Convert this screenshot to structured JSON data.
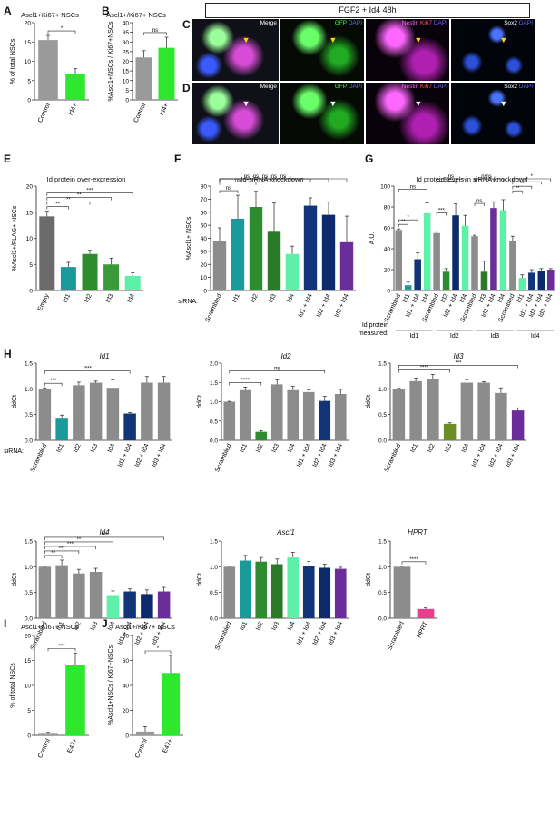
{
  "figure": {
    "banner": "FGF2 + Id4 48h"
  },
  "panels": {
    "A": "A",
    "B": "B",
    "C": "C",
    "D": "D",
    "E": "E",
    "F": "F",
    "G": "G",
    "H": "H",
    "I": "I",
    "J": "J"
  },
  "micro_labels": {
    "merge": "Merge",
    "gfp": "GFP",
    "dapi": "DAPI",
    "nestin": "Nestin",
    "ki67": "Ki67",
    "sox2": "Sox2"
  },
  "colors": {
    "grey": "#8c8c8c",
    "green": "#2ee82e",
    "teal": "#1a9a9a",
    "dgreen": "#2e8b2e",
    "mint": "#5cf0a8",
    "navy": "#12357a",
    "purple": "#6a2d9a",
    "dark": "#555555",
    "pink": "#e83e8c"
  },
  "chart_data": [
    {
      "id": "A",
      "type": "bar",
      "title": "Ascl1+Ki67+ NSCs",
      "ylabel": "% of total NSCs",
      "categories": [
        "Control",
        "Id4+"
      ],
      "values": [
        15.5,
        6.8
      ],
      "errors": [
        1.2,
        1.3
      ],
      "ylim": [
        0,
        20
      ],
      "yticks": [
        "0",
        "5",
        "10",
        "15",
        "20"
      ],
      "sig": [
        {
          "a": 0,
          "b": 1,
          "label": "*"
        }
      ],
      "colors": [
        "#9a9a9a",
        "#2ee82e"
      ]
    },
    {
      "id": "B",
      "type": "bar",
      "title": "Ascl1+/Ki67+ NSCs",
      "ylabel": "%Ascl1+NSCs / Ki67+NSCs",
      "categories": [
        "Control",
        "Id4+"
      ],
      "values": [
        22,
        27
      ],
      "errors": [
        3.5,
        5.5
      ],
      "ylim": [
        0,
        40
      ],
      "yticks": [
        "0",
        "5",
        "10",
        "15",
        "20",
        "25",
        "30",
        "35",
        "40"
      ],
      "sig": [
        {
          "a": 0,
          "b": 1,
          "label": "ns"
        }
      ],
      "colors": [
        "#9a9a9a",
        "#2ee82e"
      ]
    },
    {
      "id": "E",
      "type": "bar",
      "title": "Id protein over-expression",
      "ylabel": "%Ascl1+/FLAG+ NSCs",
      "categories": [
        "Empty",
        "Id1",
        "Id2",
        "Id3",
        "Id4"
      ],
      "values": [
        14.2,
        4.5,
        7.0,
        5.0,
        2.8
      ],
      "errors": [
        1.0,
        0.9,
        0.7,
        1.2,
        0.6
      ],
      "ylim": [
        0,
        20
      ],
      "yticks": [
        "0",
        "5",
        "10",
        "15",
        "20"
      ],
      "sig": [
        {
          "a": 0,
          "b": 1,
          "label": "**"
        },
        {
          "a": 0,
          "b": 2,
          "label": "**"
        },
        {
          "a": 0,
          "b": 3,
          "label": "**"
        },
        {
          "a": 0,
          "b": 4,
          "label": "***"
        }
      ],
      "colors": [
        "#6b6b6b",
        "#1a9a9a",
        "#2e8b2e",
        "#3a9a3a",
        "#5cf0a8"
      ]
    },
    {
      "id": "F",
      "type": "bar",
      "title": "Id-siRNA knockdown",
      "ylabel": "%Ascl1+ NSCs",
      "prefix": "siRNA:",
      "categories": [
        "Scrambled",
        "Id1",
        "Id2",
        "Id3",
        "Id4",
        "Id1 + Id4",
        "Id2 + Id4",
        "Id3 + Id4"
      ],
      "values": [
        38,
        55,
        64,
        45,
        28,
        65,
        58,
        37
      ],
      "errors": [
        10,
        18,
        12,
        22,
        6,
        6,
        10,
        20
      ],
      "ylim": [
        0,
        80
      ],
      "yticks": [
        "0",
        "10",
        "20",
        "30",
        "40",
        "50",
        "60",
        "70",
        "80"
      ],
      "sig": [
        {
          "a": 0,
          "b": 1,
          "label": "ns"
        },
        {
          "a": 0,
          "b": 2,
          "label": "ns"
        },
        {
          "a": 0,
          "b": 3,
          "label": "ns"
        },
        {
          "a": 0,
          "b": 4,
          "label": "ns"
        },
        {
          "a": 0,
          "b": 5,
          "label": "ns"
        },
        {
          "a": 0,
          "b": 6,
          "label": "ns"
        },
        {
          "a": 0,
          "b": 7,
          "label": "ns"
        }
      ],
      "colors": [
        "#8c8c8c",
        "#1a9a9a",
        "#2e8b2e",
        "#2a7a2a",
        "#5cf0a8",
        "#12357a",
        "#0d2a6a",
        "#6a2d9a"
      ]
    },
    {
      "id": "G",
      "type": "bar",
      "title": "Id protein levels in siRNA knockdown",
      "ylabel": "A.U.",
      "categories": [
        "Scrambled",
        "Id1",
        "Id1 + Id4",
        "Id4",
        "Scrambled",
        "Id2",
        "Id2 + Id4",
        "Id4",
        "Scrambled",
        "Id3",
        "Id3 + Id4",
        "Id4",
        "Scrambled",
        "Id1",
        "Id1 + Id4",
        "Id2 + Id4",
        "Id3 + Id4"
      ],
      "values": [
        58,
        5,
        30,
        74,
        55,
        18,
        72,
        62,
        52,
        18,
        79,
        77,
        47,
        12,
        17,
        19,
        20
      ],
      "errors": [
        1,
        3,
        6,
        10,
        2,
        3,
        11,
        10,
        1,
        10,
        6,
        10,
        5,
        3,
        3,
        2,
        1
      ],
      "ylim": [
        0,
        100
      ],
      "yticks": [
        "0",
        "20",
        "40",
        "60",
        "80",
        "100"
      ],
      "groups": [
        "Id1",
        "Id2",
        "Id3",
        "Id4"
      ],
      "group_label": "Id protein\nmeasured:",
      "sig": [
        {
          "a": 0,
          "b": 1,
          "label": "**"
        },
        {
          "a": 0,
          "b": 2,
          "label": "*"
        },
        {
          "a": 0,
          "b": 3,
          "label": "ns"
        },
        {
          "a": 4,
          "b": 5,
          "label": "***"
        },
        {
          "a": 4,
          "b": 6,
          "label": "ns"
        },
        {
          "a": 4,
          "b": 7,
          "label": "ns"
        },
        {
          "a": 8,
          "b": 9,
          "label": "ns"
        },
        {
          "a": 8,
          "b": 10,
          "label": "ns"
        },
        {
          "a": 8,
          "b": 11,
          "label": "ns"
        },
        {
          "a": 12,
          "b": 13,
          "label": "**"
        },
        {
          "a": 12,
          "b": 14,
          "label": "**"
        },
        {
          "a": 12,
          "b": 15,
          "label": "*"
        },
        {
          "a": 12,
          "b": 16,
          "label": "*"
        }
      ],
      "colors": [
        "#8c8c8c",
        "#1a9a9a",
        "#12357a",
        "#5cf0a8",
        "#8c8c8c",
        "#2e8b2e",
        "#0d2a6a",
        "#5cf0a8",
        "#8c8c8c",
        "#2a7a2a",
        "#6a2d9a",
        "#5cf0a8",
        "#8c8c8c",
        "#5cf0a8",
        "#12357a",
        "#0d2a6a",
        "#6a2d9a"
      ]
    },
    {
      "id": "H1",
      "type": "bar",
      "title": "Id1",
      "ylabel": "ddCt",
      "prefix": "siRNA:",
      "categories": [
        "Scrambled",
        "Id1",
        "Id2",
        "Id3",
        "Id4",
        "Id1 + Id4",
        "Id2 + Id4",
        "Id3 + Id4"
      ],
      "values": [
        1.0,
        0.42,
        1.07,
        1.12,
        1.02,
        0.52,
        1.12,
        1.12
      ],
      "errors": [
        0.02,
        0.07,
        0.06,
        0.03,
        0.15,
        0.02,
        0.12,
        0.12
      ],
      "ylim": [
        0,
        1.5
      ],
      "yticks": [
        "0.0",
        "0.5",
        "1.0",
        "1.5"
      ],
      "sig": [
        {
          "a": 0,
          "b": 1,
          "label": "***"
        },
        {
          "a": 0,
          "b": 5,
          "label": "****"
        }
      ],
      "colors": [
        "#8c8c8c",
        "#1a9a9a",
        "#8c8c8c",
        "#8c8c8c",
        "#8c8c8c",
        "#12357a",
        "#8c8c8c",
        "#8c8c8c"
      ]
    },
    {
      "id": "H2",
      "type": "bar",
      "title": "Id2",
      "ylabel": "ddCt",
      "categories": [
        "Scrambled",
        "Id1",
        "Id2",
        "Id3",
        "Id4",
        "Id1 + Id4",
        "Id2 + Id4",
        "Id3 + Id4"
      ],
      "values": [
        1.0,
        1.3,
        0.22,
        1.45,
        1.3,
        1.25,
        1.02,
        1.2
      ],
      "errors": [
        0.01,
        0.08,
        0.03,
        0.12,
        0.1,
        0.06,
        0.12,
        0.12
      ],
      "ylim": [
        0,
        2.0
      ],
      "yticks": [
        "0.0",
        "0.5",
        "1.0",
        "1.5",
        "2.0"
      ],
      "sig": [
        {
          "a": 0,
          "b": 2,
          "label": "****"
        },
        {
          "a": 0,
          "b": 6,
          "label": "ns"
        }
      ],
      "colors": [
        "#8c8c8c",
        "#8c8c8c",
        "#2e8b2e",
        "#8c8c8c",
        "#8c8c8c",
        "#8c8c8c",
        "#12357a",
        "#8c8c8c"
      ]
    },
    {
      "id": "H3",
      "type": "bar",
      "title": "Id3",
      "ylabel": "ddCt",
      "categories": [
        "Scrambled",
        "Id1",
        "Id2",
        "Id3",
        "Id4",
        "Id1 + Id4",
        "Id2 + Id4",
        "Id3 + Id4"
      ],
      "values": [
        1.0,
        1.15,
        1.2,
        0.32,
        1.12,
        1.12,
        0.92,
        0.58
      ],
      "errors": [
        0.01,
        0.06,
        0.08,
        0.02,
        0.06,
        0.02,
        0.1,
        0.05
      ],
      "ylim": [
        0,
        1.5
      ],
      "yticks": [
        "0.0",
        "0.5",
        "1.0",
        "1.5"
      ],
      "sig": [
        {
          "a": 0,
          "b": 3,
          "label": "****"
        },
        {
          "a": 0,
          "b": 7,
          "label": "***"
        }
      ],
      "colors": [
        "#8c8c8c",
        "#8c8c8c",
        "#8c8c8c",
        "#6b8e23",
        "#8c8c8c",
        "#8c8c8c",
        "#8c8c8c",
        "#6a2d9a"
      ]
    },
    {
      "id": "H4",
      "type": "bar",
      "title": "Id4",
      "ylabel": "ddCt",
      "categories": [
        "Scrambled",
        "Id1",
        "Id2",
        "Id3",
        "Id4",
        "Id1 + Id4",
        "Id2 + Id4",
        "Id3 + Id4"
      ],
      "values": [
        1.0,
        1.03,
        0.87,
        0.9,
        0.45,
        0.52,
        0.47,
        0.52
      ],
      "errors": [
        0.01,
        0.1,
        0.08,
        0.07,
        0.08,
        0.05,
        0.08,
        0.08
      ],
      "ylim": [
        0,
        1.5
      ],
      "yticks": [
        "0.0",
        "0.5",
        "1.0",
        "1.5"
      ],
      "sig": [
        {
          "a": 0,
          "b": 1,
          "label": "**"
        },
        {
          "a": 0,
          "b": 2,
          "label": "***"
        },
        {
          "a": 0,
          "b": 3,
          "label": "***"
        },
        {
          "a": 0,
          "b": 4,
          "label": "**"
        },
        {
          "a": 0,
          "b": 7,
          "label": "***"
        }
      ],
      "colors": [
        "#8c8c8c",
        "#8c8c8c",
        "#8c8c8c",
        "#8c8c8c",
        "#5cf0a8",
        "#12357a",
        "#0d2a6a",
        "#6a2d9a"
      ]
    },
    {
      "id": "H5",
      "type": "bar",
      "title": "Ascl1",
      "ylabel": "ddCt",
      "categories": [
        "Scrambled",
        "Id1",
        "Id2",
        "Id3",
        "Id4",
        "Id1 + Id4",
        "Id2 + Id4",
        "Id3 + Id4"
      ],
      "values": [
        1.0,
        1.12,
        1.1,
        1.05,
        1.18,
        1.02,
        0.98,
        0.96
      ],
      "errors": [
        0.01,
        0.1,
        0.08,
        0.1,
        0.1,
        0.08,
        0.07,
        0.03
      ],
      "ylim": [
        0,
        1.5
      ],
      "yticks": [
        "0.0",
        "0.5",
        "1.0",
        "1.5"
      ],
      "sig": [],
      "colors": [
        "#8c8c8c",
        "#1a9a9a",
        "#2e8b2e",
        "#2a7a2a",
        "#5cf0a8",
        "#12357a",
        "#0d2a6a",
        "#6a2d9a"
      ]
    },
    {
      "id": "H6",
      "type": "bar",
      "title": "HPRT",
      "ylabel": "ddCt",
      "categories": [
        "Scrambled",
        "HPRT"
      ],
      "values": [
        1.0,
        0.18
      ],
      "errors": [
        0.01,
        0.02
      ],
      "ylim": [
        0,
        1.5
      ],
      "yticks": [
        "0.0",
        "0.5",
        "1.0",
        "1.5"
      ],
      "sig": [
        {
          "a": 0,
          "b": 1,
          "label": "****"
        }
      ],
      "colors": [
        "#8c8c8c",
        "#e83e8c"
      ]
    },
    {
      "id": "I",
      "type": "bar",
      "title": "Ascl1+Ki67+ NSCs",
      "ylabel": "% of total NSCs",
      "categories": [
        "Control",
        "E47+"
      ],
      "values": [
        0.3,
        14
      ],
      "errors": [
        0.3,
        2.5
      ],
      "ylim": [
        0,
        20
      ],
      "yticks": [
        "0",
        "5",
        "10",
        "15",
        "20"
      ],
      "sig": [
        {
          "a": 0,
          "b": 1,
          "label": "***"
        }
      ],
      "colors": [
        "#9a9a9a",
        "#2ee82e"
      ]
    },
    {
      "id": "J",
      "type": "bar",
      "title": "Ascl1+/Ki67+ NSCs",
      "ylabel": "%Ascl1+NSCs / Ki67+NSCs",
      "categories": [
        "Control",
        "E47+"
      ],
      "values": [
        3,
        50
      ],
      "errors": [
        4,
        14
      ],
      "ylim": [
        0,
        80
      ],
      "yticks": [
        "0",
        "20",
        "40",
        "60",
        "80"
      ],
      "sig": [
        {
          "a": 0,
          "b": 1,
          "label": "*"
        }
      ],
      "colors": [
        "#9a9a9a",
        "#2ee82e"
      ]
    }
  ]
}
